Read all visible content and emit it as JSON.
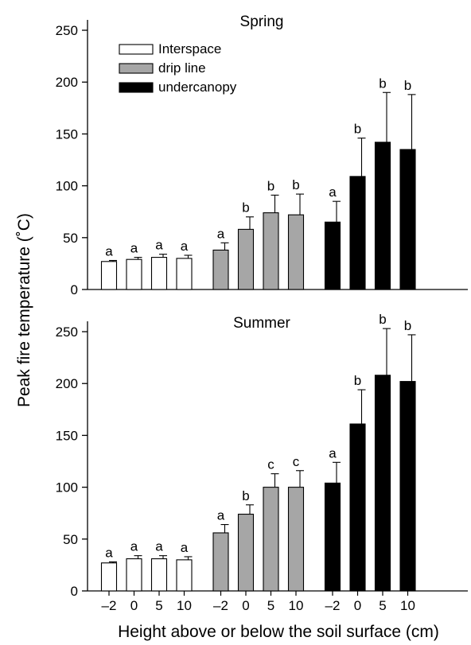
{
  "figure": {
    "ylabel": "Peak fire temperature (˚C)",
    "xlabel": "Height above or below the soil surface (cm)",
    "legend": [
      {
        "name": "Interspace",
        "color": "#ffffff"
      },
      {
        "name": "drip line",
        "color": "#a6a6a6"
      },
      {
        "name": "undercanopy",
        "color": "#000000"
      }
    ],
    "x_tick_labels": [
      "–2",
      "0",
      "5",
      "10",
      "–2",
      "0",
      "5",
      "10",
      "–2",
      "0",
      "5",
      "10"
    ]
  },
  "chart_data": [
    {
      "type": "bar",
      "title": "Spring",
      "ylim": [
        0,
        260
      ],
      "yticks": [
        0,
        50,
        100,
        150,
        200,
        250
      ],
      "categories": [
        "-2",
        "0",
        "5",
        "10"
      ],
      "error_bars": "upper",
      "legend_position": "top-left",
      "series": [
        {
          "name": "Interspace",
          "values": [
            27,
            29,
            31,
            30
          ],
          "errors": [
            1,
            2,
            3,
            3
          ],
          "letters": [
            "a",
            "a",
            "a",
            "a"
          ]
        },
        {
          "name": "drip line",
          "values": [
            38,
            58,
            74,
            72
          ],
          "errors": [
            7,
            12,
            17,
            20
          ],
          "letters": [
            "a",
            "b",
            "b",
            "b"
          ]
        },
        {
          "name": "undercanopy",
          "values": [
            65,
            109,
            142,
            135
          ],
          "errors": [
            20,
            37,
            48,
            53
          ],
          "letters": [
            "a",
            "b",
            "b",
            "b"
          ]
        }
      ]
    },
    {
      "type": "bar",
      "title": "Summer",
      "ylim": [
        0,
        260
      ],
      "yticks": [
        0,
        50,
        100,
        150,
        200,
        250
      ],
      "categories": [
        "-2",
        "0",
        "5",
        "10"
      ],
      "error_bars": "upper",
      "series": [
        {
          "name": "Interspace",
          "values": [
            27,
            31,
            31,
            30
          ],
          "errors": [
            1,
            3,
            3,
            3
          ],
          "letters": [
            "a",
            "a",
            "a",
            "a"
          ]
        },
        {
          "name": "drip line",
          "values": [
            56,
            74,
            100,
            100
          ],
          "errors": [
            8,
            9,
            13,
            16
          ],
          "letters": [
            "a",
            "b",
            "c",
            "c"
          ]
        },
        {
          "name": "undercanopy",
          "values": [
            104,
            161,
            208,
            202
          ],
          "errors": [
            20,
            33,
            45,
            45
          ],
          "letters": [
            "a",
            "b",
            "b",
            "b"
          ]
        }
      ]
    }
  ]
}
